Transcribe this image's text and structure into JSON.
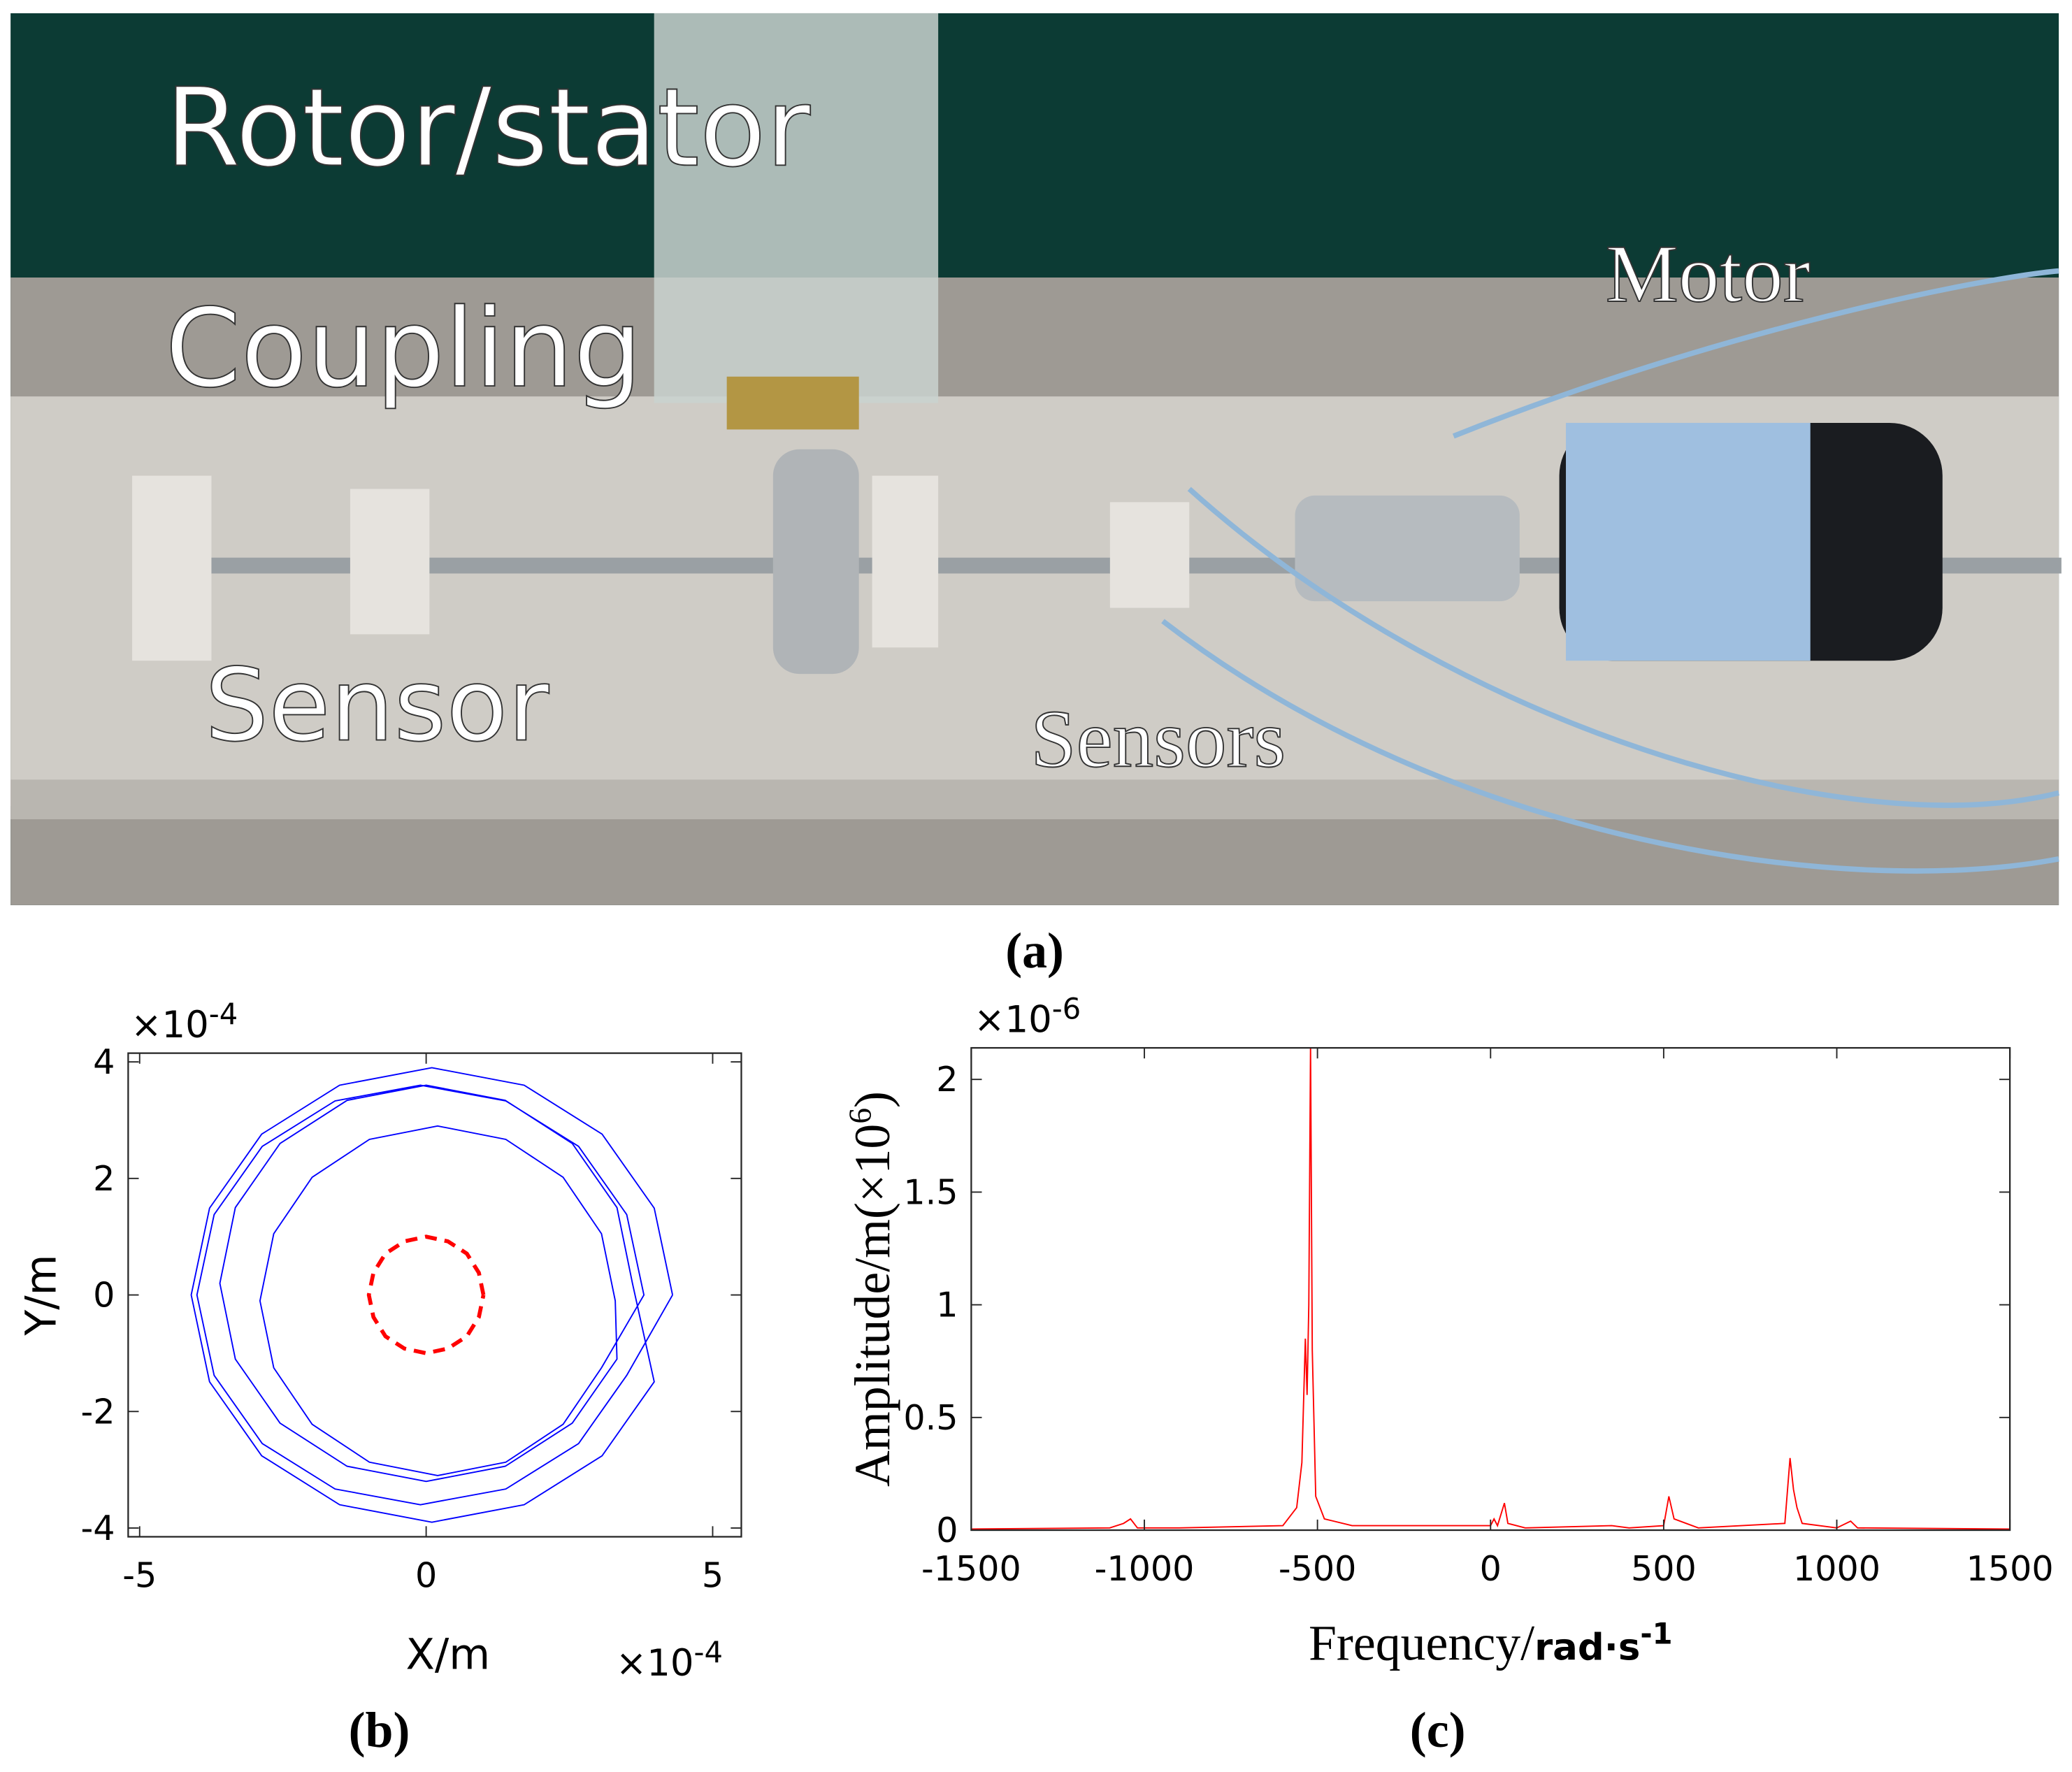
{
  "photo": {
    "labels": [
      "Rotor/stator",
      "Coupling",
      "Motor",
      "Sensor",
      "Sensors"
    ],
    "caption": "(a)"
  },
  "chart_data": [
    {
      "type": "line",
      "caption": "(b)",
      "x_label": "X/m",
      "y_label": "Y/m",
      "x_exponent": {
        "base": "×10",
        "power": "-4"
      },
      "y_exponent": {
        "base": "×10",
        "power": "-4"
      },
      "xlim": [
        -5.2,
        5.5
      ],
      "ylim": [
        -4.15,
        4.15
      ],
      "xticks": [
        -5,
        0,
        5
      ],
      "yticks": [
        -4,
        -2,
        0,
        2,
        4
      ],
      "grid": false,
      "series": [
        {
          "color": "#0000ff",
          "dash": false,
          "x": [
            4.3,
            3.98,
            3.07,
            1.71,
            0.1,
            -1.51,
            -2.87,
            -3.78,
            -4.1,
            -3.78,
            -2.87,
            -1.51,
            0.1,
            1.71,
            3.07,
            3.98,
            3.6,
            3.33,
            2.55,
            1.38,
            0,
            -1.38,
            -2.55,
            -3.33,
            -3.6,
            -3.33,
            -2.55,
            -1.38,
            0,
            1.38,
            2.55,
            3.33,
            3.3,
            3.06,
            2.39,
            1.39,
            0.2,
            -0.99,
            -1.99,
            -2.66,
            -2.9,
            -2.66,
            -1.99,
            -0.99,
            0.2,
            1.39,
            2.39,
            3.06,
            3.8,
            3.5,
            2.66,
            1.39,
            -0.1,
            -1.59,
            -2.86,
            -3.7,
            -4.0,
            -3.7,
            -2.86,
            -1.59,
            -0.1,
            1.39,
            2.66,
            3.5,
            4.3
          ],
          "values": [
            0,
            1.49,
            2.76,
            3.6,
            3.9,
            3.6,
            2.76,
            1.49,
            0,
            -1.49,
            -2.76,
            -3.6,
            -3.9,
            -3.6,
            -2.76,
            -1.49,
            0.2,
            1.5,
            2.6,
            3.34,
            3.6,
            3.34,
            2.6,
            1.5,
            0.2,
            -1.1,
            -2.2,
            -2.94,
            -3.2,
            -2.94,
            -2.2,
            -1.1,
            -0.1,
            1.05,
            2.02,
            2.67,
            2.9,
            2.67,
            2.02,
            1.05,
            -0.1,
            -1.25,
            -2.22,
            -2.87,
            -3.1,
            -2.87,
            -2.22,
            -1.25,
            0,
            1.38,
            2.55,
            3.33,
            3.6,
            3.33,
            2.55,
            1.38,
            0,
            -1.38,
            -2.55,
            -3.33,
            -3.6,
            -3.33,
            -2.55,
            -1.38,
            0
          ]
        },
        {
          "color": "#ff0000",
          "dash": true,
          "x": [
            1,
            0.92,
            0.71,
            0.38,
            0,
            -0.38,
            -0.71,
            -0.92,
            -1,
            -0.92,
            -0.71,
            -0.38,
            0,
            0.38,
            0.71,
            0.92,
            1
          ],
          "values": [
            0,
            0.38,
            0.71,
            0.92,
            1,
            0.92,
            0.71,
            0.38,
            0,
            -0.38,
            -0.71,
            -0.92,
            -1,
            -0.92,
            -0.71,
            -0.38,
            0
          ]
        }
      ]
    },
    {
      "type": "line",
      "caption": "(c)",
      "x_label": {
        "text": "Frequency/",
        "unit": "rad·s",
        "power": "-1"
      },
      "y_label": {
        "text": "Amplitude/m(×10",
        "power": "6",
        "close": ")"
      },
      "y_exponent": {
        "base": "×10",
        "power": "-6"
      },
      "xlim": [
        -1500,
        1500
      ],
      "ylim": [
        0,
        2.14
      ],
      "xticks": [
        -1500,
        -1000,
        -500,
        0,
        500,
        1000,
        1500
      ],
      "yticks": [
        0,
        0.5,
        1,
        1.5,
        2
      ],
      "grid": false,
      "series": [
        {
          "color": "#ff0000",
          "dash": false,
          "x": [
            -1500,
            -1100,
            -1060,
            -1040,
            -1020,
            -900,
            -600,
            -560,
            -545,
            -535,
            -530,
            -525,
            -520,
            -515,
            -505,
            -480,
            -400,
            0,
            10,
            20,
            40,
            50,
            100,
            350,
            400,
            500,
            515,
            530,
            600,
            850,
            865,
            875,
            885,
            900,
            1000,
            1040,
            1060,
            1500
          ],
          "values": [
            0.005,
            0.01,
            0.03,
            0.05,
            0.01,
            0.01,
            0.02,
            0.1,
            0.3,
            0.85,
            0.6,
            1.0,
            2.15,
            0.8,
            0.15,
            0.05,
            0.02,
            0.02,
            0.05,
            0.02,
            0.12,
            0.03,
            0.01,
            0.02,
            0.01,
            0.02,
            0.15,
            0.05,
            0.01,
            0.03,
            0.32,
            0.18,
            0.1,
            0.03,
            0.01,
            0.04,
            0.01,
            0.005
          ]
        }
      ]
    }
  ]
}
